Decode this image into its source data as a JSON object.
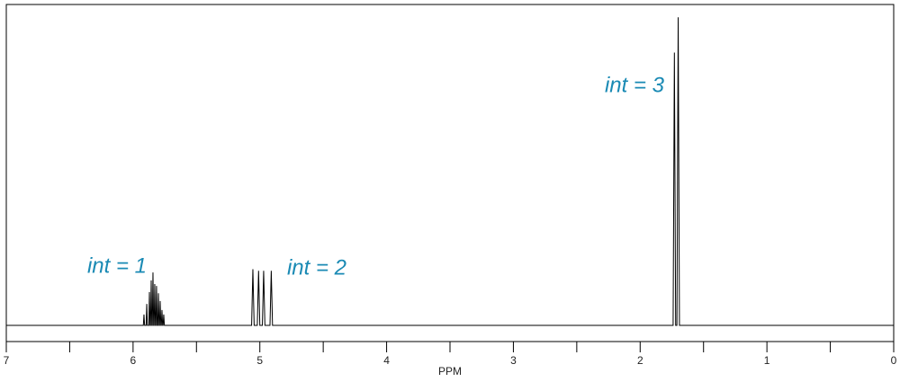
{
  "chart_data": {
    "type": "line",
    "xlabel": "PPM",
    "x": [
      7,
      5.919,
      5.914,
      5.909,
      5.897,
      5.892,
      5.887,
      5.876,
      5.871,
      5.866,
      5.862,
      5.857,
      5.852,
      5.848,
      5.843,
      5.838,
      5.834,
      5.829,
      5.824,
      5.82,
      5.815,
      5.81,
      5.805,
      5.8,
      5.795,
      5.791,
      5.786,
      5.781,
      5.777,
      5.772,
      5.767,
      5.763,
      5.758,
      5.753,
      5.065,
      5.055,
      5.045,
      5.02,
      5.01,
      5.0,
      4.98,
      4.97,
      4.96,
      4.92,
      4.91,
      4.9,
      1.74,
      1.73,
      1.72,
      1.71,
      1.7,
      1.69,
      0
    ],
    "values": [
      0,
      0,
      3.4,
      0,
      0,
      6.7,
      0,
      0,
      10.4,
      0,
      0,
      14,
      0,
      0,
      16.5,
      0,
      0,
      12.9,
      0,
      0,
      12.3,
      0,
      0,
      10,
      0,
      0,
      7.6,
      0,
      0,
      4.8,
      0,
      0,
      3.4,
      0,
      0,
      17.5,
      0,
      0,
      17,
      0,
      0,
      17,
      0,
      0,
      17,
      0,
      0,
      85,
      0,
      0,
      96,
      0,
      0
    ],
    "color": "#000000",
    "xlim": [
      7,
      0
    ],
    "xticks": [
      7,
      6,
      5,
      4,
      3,
      2,
      1,
      0
    ],
    "xminor_ticks": [
      6.5,
      5.5,
      4.5,
      3.5,
      2.5,
      1.5,
      0.5
    ],
    "ylim": [
      0,
      100
    ],
    "annotations": [
      {
        "text": "int = 1",
        "color": "#1a8ab4"
      },
      {
        "text": "int = 2",
        "color": "#1a8ab4"
      },
      {
        "text": "int = 3",
        "color": "#1a8ab4"
      }
    ]
  }
}
